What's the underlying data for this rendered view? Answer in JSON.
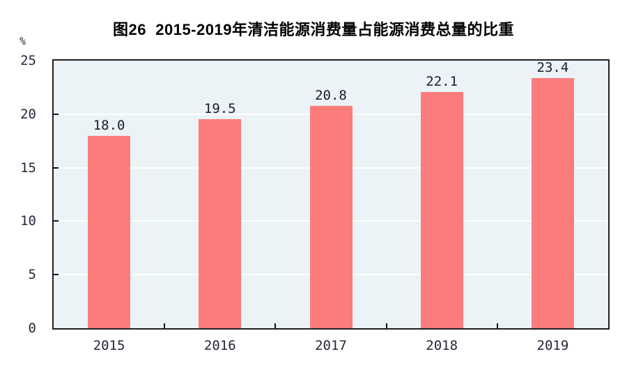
{
  "title": "图26  2015-2019年清洁能源消费量占能源消费总量的比重",
  "unit_label": "%",
  "chart_data": {
    "type": "bar",
    "title": "图26  2015-2019年清洁能源消费量占能源消费总量的比重",
    "categories": [
      "2015",
      "2016",
      "2017",
      "2018",
      "2019"
    ],
    "values": [
      18.0,
      19.5,
      20.8,
      22.1,
      23.4
    ],
    "value_labels": [
      "18.0",
      "19.5",
      "20.8",
      "22.1",
      "23.4"
    ],
    "xlabel": "",
    "ylabel": "%",
    "ylim": [
      0,
      25
    ],
    "yticks": [
      0,
      5,
      10,
      15,
      20,
      25
    ],
    "grid": "horizontal, white lines on light-blue plot background",
    "legend": "none",
    "bar_color": "#fc7c7c",
    "plot_bg_color": "#ebf3f6",
    "gridline_color": "#ffffff",
    "axis_color": "#1f1f1f",
    "label_color": "#1b1b2b"
  }
}
